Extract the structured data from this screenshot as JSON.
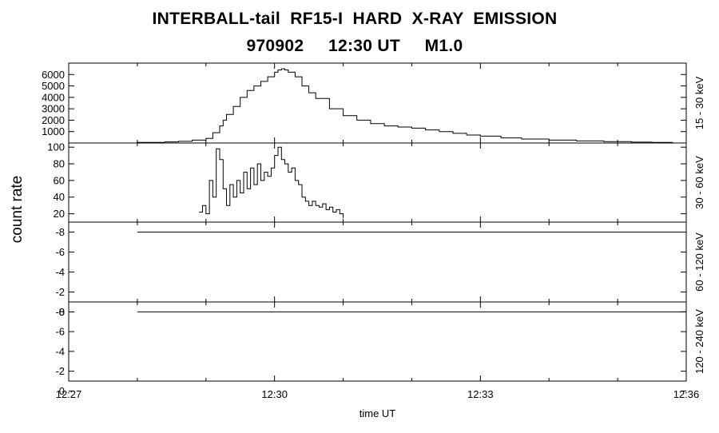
{
  "title_line1": "INTERBALL-tail  RF15-I  HARD  X-RAY  EMISSION",
  "title_line2": "970902     12:30 UT     M1.0",
  "ylabel": "count rate",
  "xlabel": "time UT",
  "x_ticks": [
    "12:27",
    "12:30",
    "12:33",
    "12:36"
  ],
  "chart_data": [
    {
      "type": "line",
      "step": true,
      "channel": "15 - 30 keV",
      "xunit": "minutes after 12:27 UT",
      "xlim": [
        0,
        9
      ],
      "ylim": [
        0,
        7000
      ],
      "yticks": [
        1000,
        2000,
        3000,
        4000,
        5000,
        6000
      ],
      "x": [
        0.8,
        1.0,
        1.4,
        1.6,
        1.8,
        2.0,
        2.1,
        2.2,
        2.25,
        2.3,
        2.4,
        2.5,
        2.6,
        2.7,
        2.8,
        2.9,
        3.0,
        3.05,
        3.1,
        3.15,
        3.2,
        3.3,
        3.4,
        3.5,
        3.6,
        3.8,
        4.0,
        4.2,
        4.4,
        4.6,
        4.8,
        5.0,
        5.2,
        5.4,
        5.6,
        5.8,
        6.0,
        6.3,
        6.6,
        7.0,
        7.4,
        7.8,
        8.2,
        8.5,
        8.8
      ],
      "values": [
        0,
        50,
        100,
        150,
        250,
        400,
        900,
        1500,
        2000,
        2500,
        3200,
        4000,
        4600,
        5000,
        5400,
        5800,
        6200,
        6400,
        6500,
        6400,
        6200,
        5800,
        5000,
        4400,
        3900,
        3000,
        2400,
        2000,
        1700,
        1500,
        1400,
        1300,
        1150,
        1000,
        850,
        700,
        600,
        450,
        350,
        250,
        180,
        120,
        80,
        50,
        30
      ]
    },
    {
      "type": "line",
      "step": true,
      "channel": "30 - 60 keV",
      "xunit": "minutes after 12:27 UT",
      "xlim": [
        0,
        9
      ],
      "ylim": [
        10,
        105
      ],
      "yticks": [
        20,
        40,
        60,
        80,
        100
      ],
      "x": [
        1.9,
        1.95,
        2.0,
        2.05,
        2.1,
        2.15,
        2.2,
        2.25,
        2.3,
        2.35,
        2.4,
        2.45,
        2.5,
        2.55,
        2.6,
        2.65,
        2.7,
        2.75,
        2.8,
        2.85,
        2.9,
        2.95,
        3.0,
        3.05,
        3.1,
        3.15,
        3.2,
        3.25,
        3.3,
        3.35,
        3.4,
        3.45,
        3.5,
        3.55,
        3.6,
        3.65,
        3.7,
        3.75,
        3.8,
        3.85,
        3.9,
        3.95,
        4.0
      ],
      "values": [
        22,
        30,
        20,
        60,
        40,
        98,
        85,
        50,
        30,
        55,
        40,
        60,
        45,
        70,
        50,
        75,
        55,
        80,
        60,
        70,
        65,
        75,
        90,
        100,
        85,
        80,
        70,
        75,
        60,
        55,
        40,
        35,
        30,
        35,
        30,
        28,
        32,
        25,
        28,
        22,
        25,
        20,
        15
      ]
    },
    {
      "type": "line",
      "channel": "60 - 120 keV",
      "xunit": "minutes after 12:27 UT",
      "xlim": [
        0,
        9
      ],
      "ylim": [
        -1,
        -9
      ],
      "yticks": [
        -8,
        -6,
        -4,
        -2,
        0
      ],
      "ytick_labels": [
        "-8",
        "-6",
        "-4",
        "-2",
        "0"
      ],
      "x": [
        1.0,
        9.0
      ],
      "values": [
        -8,
        -8
      ]
    },
    {
      "type": "line",
      "channel": "120 - 240 keV",
      "xunit": "minutes after 12:27 UT",
      "xlim": [
        0,
        9
      ],
      "ylim": [
        -1,
        -9
      ],
      "yticks": [
        -8,
        -6,
        -4,
        -2,
        0
      ],
      "ytick_labels": [
        "-8",
        "-6",
        "-4",
        "-2",
        "0"
      ],
      "x": [
        1.0,
        9.0
      ],
      "values": [
        -8,
        -8
      ]
    }
  ]
}
